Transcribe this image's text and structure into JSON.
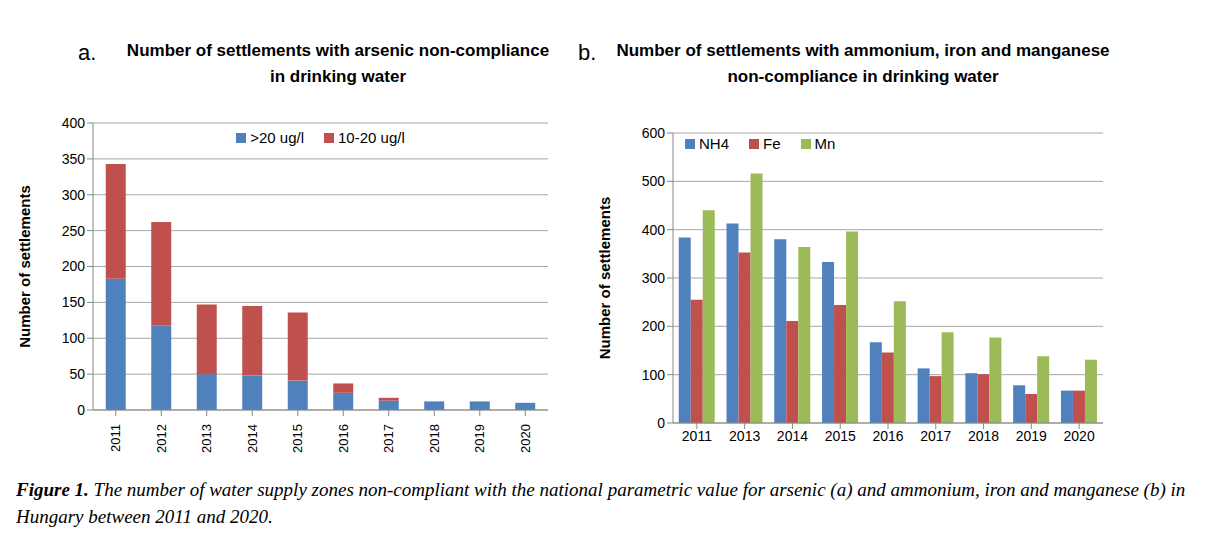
{
  "chart_data": [
    {
      "type": "bar",
      "annotations": [
        "a."
      ],
      "title": "Number of settlements with arsenic non-compliance in drinking water",
      "y_label": "Number of settlements",
      "categories": [
        "2011",
        "2012",
        "2013",
        "2014",
        "2015",
        "2016",
        "2017",
        "2018",
        "2019",
        "2020"
      ],
      "series": [
        {
          "name": ">20 ug/l",
          "color": "#4f81bd",
          "values": [
            183,
            118,
            50,
            48,
            41,
            24,
            13,
            12,
            12,
            10
          ]
        },
        {
          "name": "10-20 ug/l",
          "color": "#c0504d",
          "values": [
            160,
            144,
            97,
            97,
            95,
            13,
            4,
            0,
            0,
            0
          ]
        }
      ],
      "stacked": true,
      "ylim": [
        0,
        400
      ],
      "yticks": [
        0,
        50,
        100,
        150,
        200,
        250,
        300,
        350,
        400
      ],
      "grid": true,
      "legend": "top"
    },
    {
      "type": "bar",
      "annotations": [
        "b."
      ],
      "title": "Number of settlements with ammonium, iron and manganese non-compliance in drinking water",
      "y_label": "Number of settlements",
      "categories": [
        "2011",
        "2013",
        "2014",
        "2015",
        "2016",
        "2017",
        "2018",
        "2019",
        "2020"
      ],
      "series": [
        {
          "name": "NH4",
          "color": "#4f81bd",
          "values": [
            384,
            413,
            380,
            333,
            167,
            113,
            103,
            78,
            67
          ]
        },
        {
          "name": "Fe",
          "color": "#c0504d",
          "values": [
            255,
            353,
            211,
            244,
            146,
            97,
            101,
            60,
            67
          ]
        },
        {
          "name": "Mn",
          "color": "#9bbb59",
          "values": [
            440,
            516,
            364,
            396,
            252,
            188,
            177,
            138,
            131
          ]
        }
      ],
      "stacked": false,
      "ylim": [
        0,
        600
      ],
      "yticks": [
        0,
        100,
        200,
        300,
        400,
        500,
        600
      ],
      "grid": true,
      "legend": "top left"
    }
  ],
  "caption": {
    "label": "Figure 1.",
    "text": "The number of water supply zones non-compliant with the national parametric value for arsenic (a) and ammonium, iron and manganese (b) in Hungary between 2011 and 2020."
  }
}
